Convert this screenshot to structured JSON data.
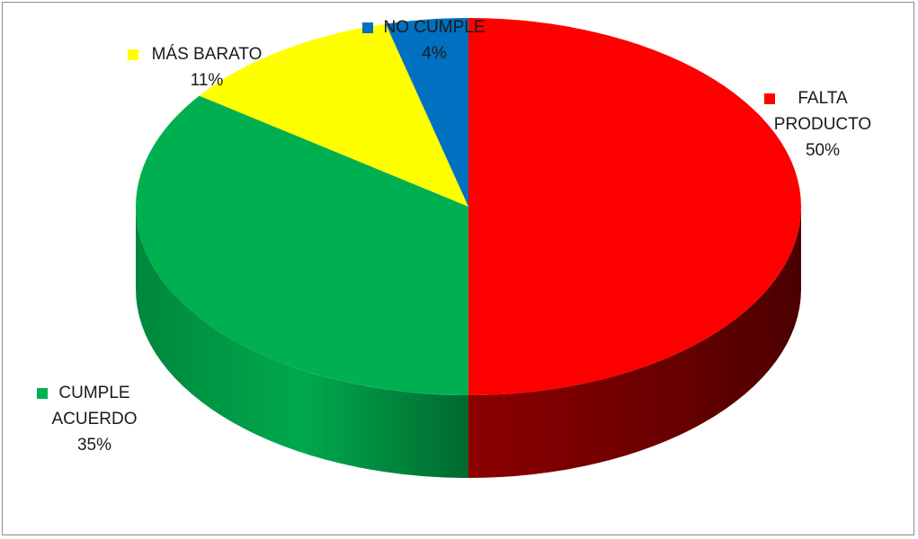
{
  "chart_data": {
    "type": "pie",
    "title": "",
    "slices": [
      {
        "label_lines": [
          "FALTA",
          "PRODUCTO"
        ],
        "percent_label": "50%",
        "value": 50,
        "color": "#ff0000",
        "side_color": "#7a0000"
      },
      {
        "label_lines": [
          "CUMPLE",
          "ACUERDO"
        ],
        "percent_label": "35%",
        "value": 35,
        "color": "#00b050",
        "side_color": "#00692f"
      },
      {
        "label_lines": [
          "MÁS BARATO"
        ],
        "percent_label": "11%",
        "value": 11,
        "color": "#ffff00",
        "side_color": "#8a8a00"
      },
      {
        "label_lines": [
          "NO CUMPLE"
        ],
        "percent_label": "4%",
        "value": 4,
        "color": "#0070c0",
        "side_color": "#003b66"
      }
    ],
    "legend": "none",
    "labels": "outside-with-color-key",
    "style": "3d-pie"
  }
}
